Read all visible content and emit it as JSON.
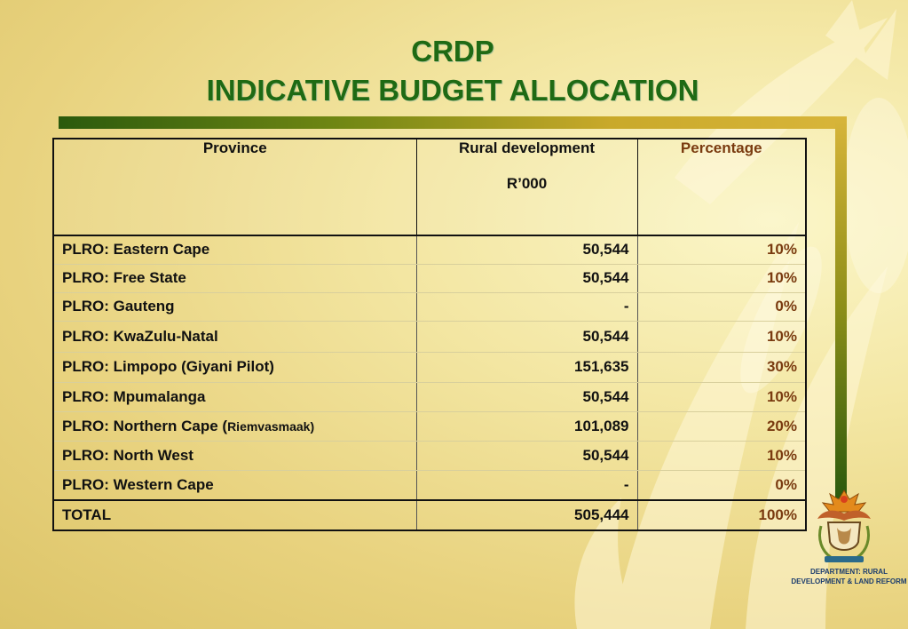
{
  "title": {
    "line1": "CRDP",
    "line2": "INDICATIVE BUDGET ALLOCATION"
  },
  "table": {
    "headers": {
      "province": "Province",
      "rural_development": "Rural development",
      "unit": "R’000",
      "percentage": "Percentage"
    },
    "rows": [
      {
        "province": "PLRO: Eastern Cape",
        "amount": "50,544",
        "percent": "10%"
      },
      {
        "province": "PLRO: Free State",
        "amount": "50,544",
        "percent": "10%"
      },
      {
        "province": "PLRO: Gauteng",
        "amount": "-",
        "percent": "0%"
      },
      {
        "province": "PLRO: KwaZulu-Natal",
        "amount": "50,544",
        "percent": "10%"
      },
      {
        "province": "PLRO: Limpopo  (Giyani Pilot)",
        "amount": "151,635",
        "percent": "30%"
      },
      {
        "province": "PLRO: Mpumalanga",
        "amount": "50,544",
        "percent": "10%"
      },
      {
        "province": "PLRO: Northern Cape (",
        "province_note": "Riemvasmaak)",
        "amount": "101,089",
        "percent": "20%"
      },
      {
        "province": "PLRO: North West",
        "amount": "50,544",
        "percent": "10%"
      },
      {
        "province": "PLRO: Western Cape",
        "amount": "-",
        "percent": "0%"
      }
    ],
    "total": {
      "label": "TOTAL",
      "amount": "505,444",
      "percent": "100%"
    }
  },
  "logo": {
    "text": "DEPARTMENT:  RURAL DEVELOPMENT & LAND REFORM",
    "icon": "coat-of-arms-icon"
  },
  "colors": {
    "title": "#1f6a14",
    "percent": "#7a3b10",
    "background": "#f3e6a2"
  }
}
